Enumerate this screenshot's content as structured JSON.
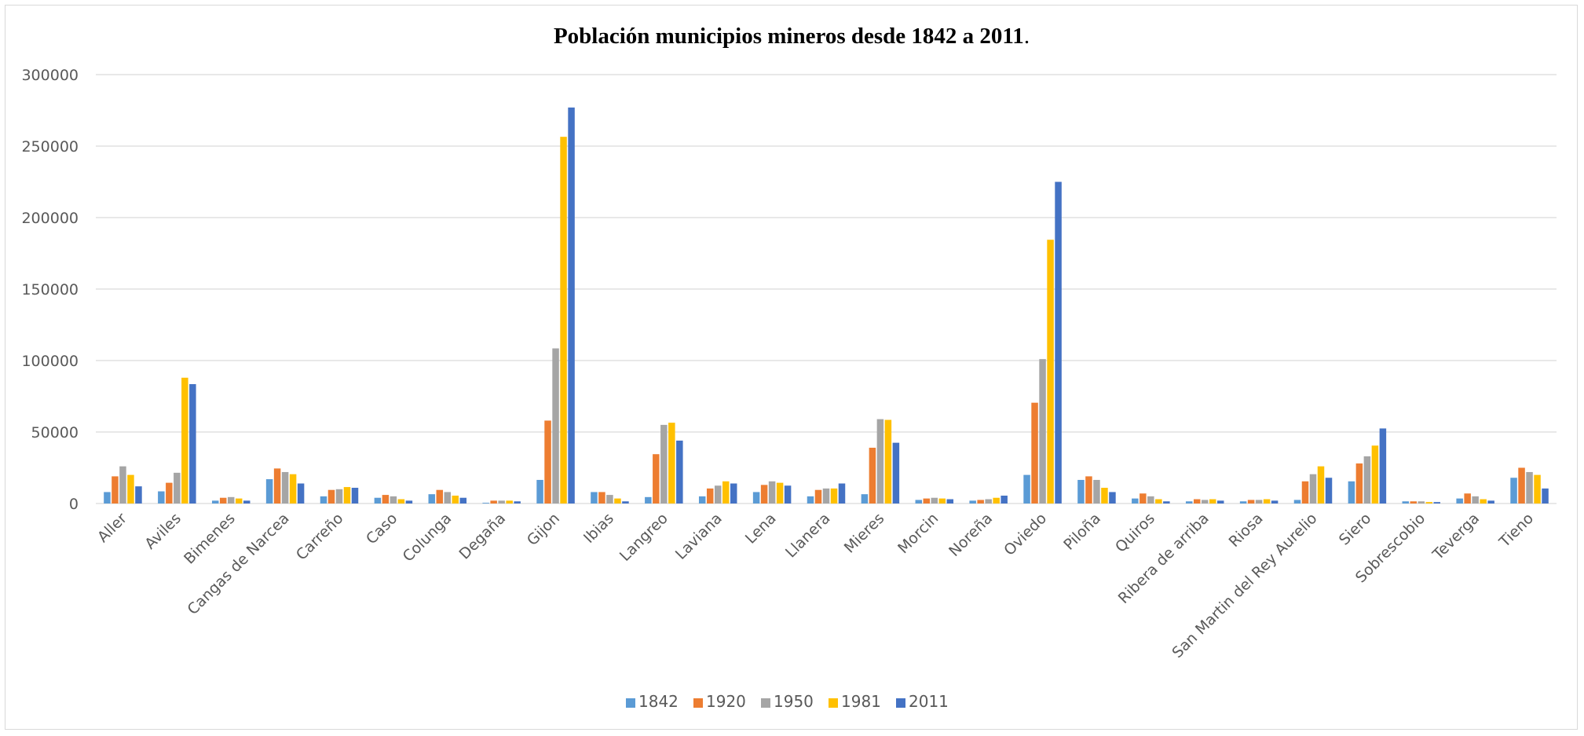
{
  "chart_data": {
    "type": "bar",
    "title": "Población municipios mineros desde 1842 a 2011",
    "title_suffix": ".",
    "xlabel": "",
    "ylabel": "",
    "ylim": [
      0,
      300000
    ],
    "yticks": [
      "0",
      "50000",
      "100000",
      "150000",
      "200000",
      "250000",
      "300000"
    ],
    "grid": true,
    "legend_position": "bottom",
    "categories": [
      "Aller",
      "Aviles",
      "Bimenes",
      "Cangas de Narcea",
      "Carreño",
      "Caso",
      "Colunga",
      "Degaña",
      "Gijon",
      "Ibias",
      "Langreo",
      "Laviana",
      "Lena",
      "Llanera",
      "Mieres",
      "Morcin",
      "Noreña",
      "Oviedo",
      "Piloña",
      "Quiros",
      "Ribera de arriba",
      "Riosa",
      "San Martin del Rey Aurelio",
      "Siero",
      "Sobrescobio",
      "Teverga",
      "Tieno"
    ],
    "series": [
      {
        "name": "1842",
        "color": "#5b9bd5",
        "values": [
          8000,
          8500,
          2000,
          17000,
          5000,
          4000,
          6500,
          500,
          16500,
          8000,
          4500,
          5000,
          8000,
          5000,
          6500,
          2500,
          2000,
          20000,
          16500,
          3500,
          1500,
          1500,
          2500,
          15500,
          1500,
          3500,
          18000
        ]
      },
      {
        "name": "1920",
        "color": "#ed7d31",
        "values": [
          19000,
          14500,
          4000,
          24500,
          9500,
          6000,
          9500,
          2000,
          58000,
          8000,
          34500,
          10500,
          13000,
          9500,
          39000,
          3500,
          2500,
          70500,
          19000,
          7000,
          3000,
          2500,
          15500,
          28000,
          1500,
          7000,
          25000
        ]
      },
      {
        "name": "1950",
        "color": "#a5a5a5",
        "values": [
          26000,
          21500,
          4500,
          22000,
          10000,
          5000,
          8000,
          2000,
          108500,
          6000,
          55000,
          12500,
          15500,
          10500,
          59000,
          4000,
          3000,
          101000,
          16500,
          5000,
          2500,
          2500,
          20500,
          33000,
          1500,
          5000,
          22000
        ]
      },
      {
        "name": "1981",
        "color": "#ffc000",
        "values": [
          20000,
          88000,
          3500,
          20500,
          11500,
          3000,
          5500,
          2000,
          256500,
          3500,
          56500,
          15500,
          14500,
          10500,
          58500,
          3500,
          4000,
          184500,
          11000,
          3000,
          3000,
          3000,
          26000,
          40500,
          1000,
          3000,
          20000
        ]
      },
      {
        "name": "2011",
        "color": "#4472c4",
        "values": [
          12000,
          83500,
          2000,
          14000,
          11000,
          2000,
          4000,
          1500,
          277000,
          1500,
          44000,
          14000,
          12500,
          14000,
          42500,
          3000,
          5500,
          225000,
          8000,
          1500,
          2000,
          2000,
          18000,
          52500,
          1000,
          2000,
          10500
        ]
      }
    ]
  }
}
